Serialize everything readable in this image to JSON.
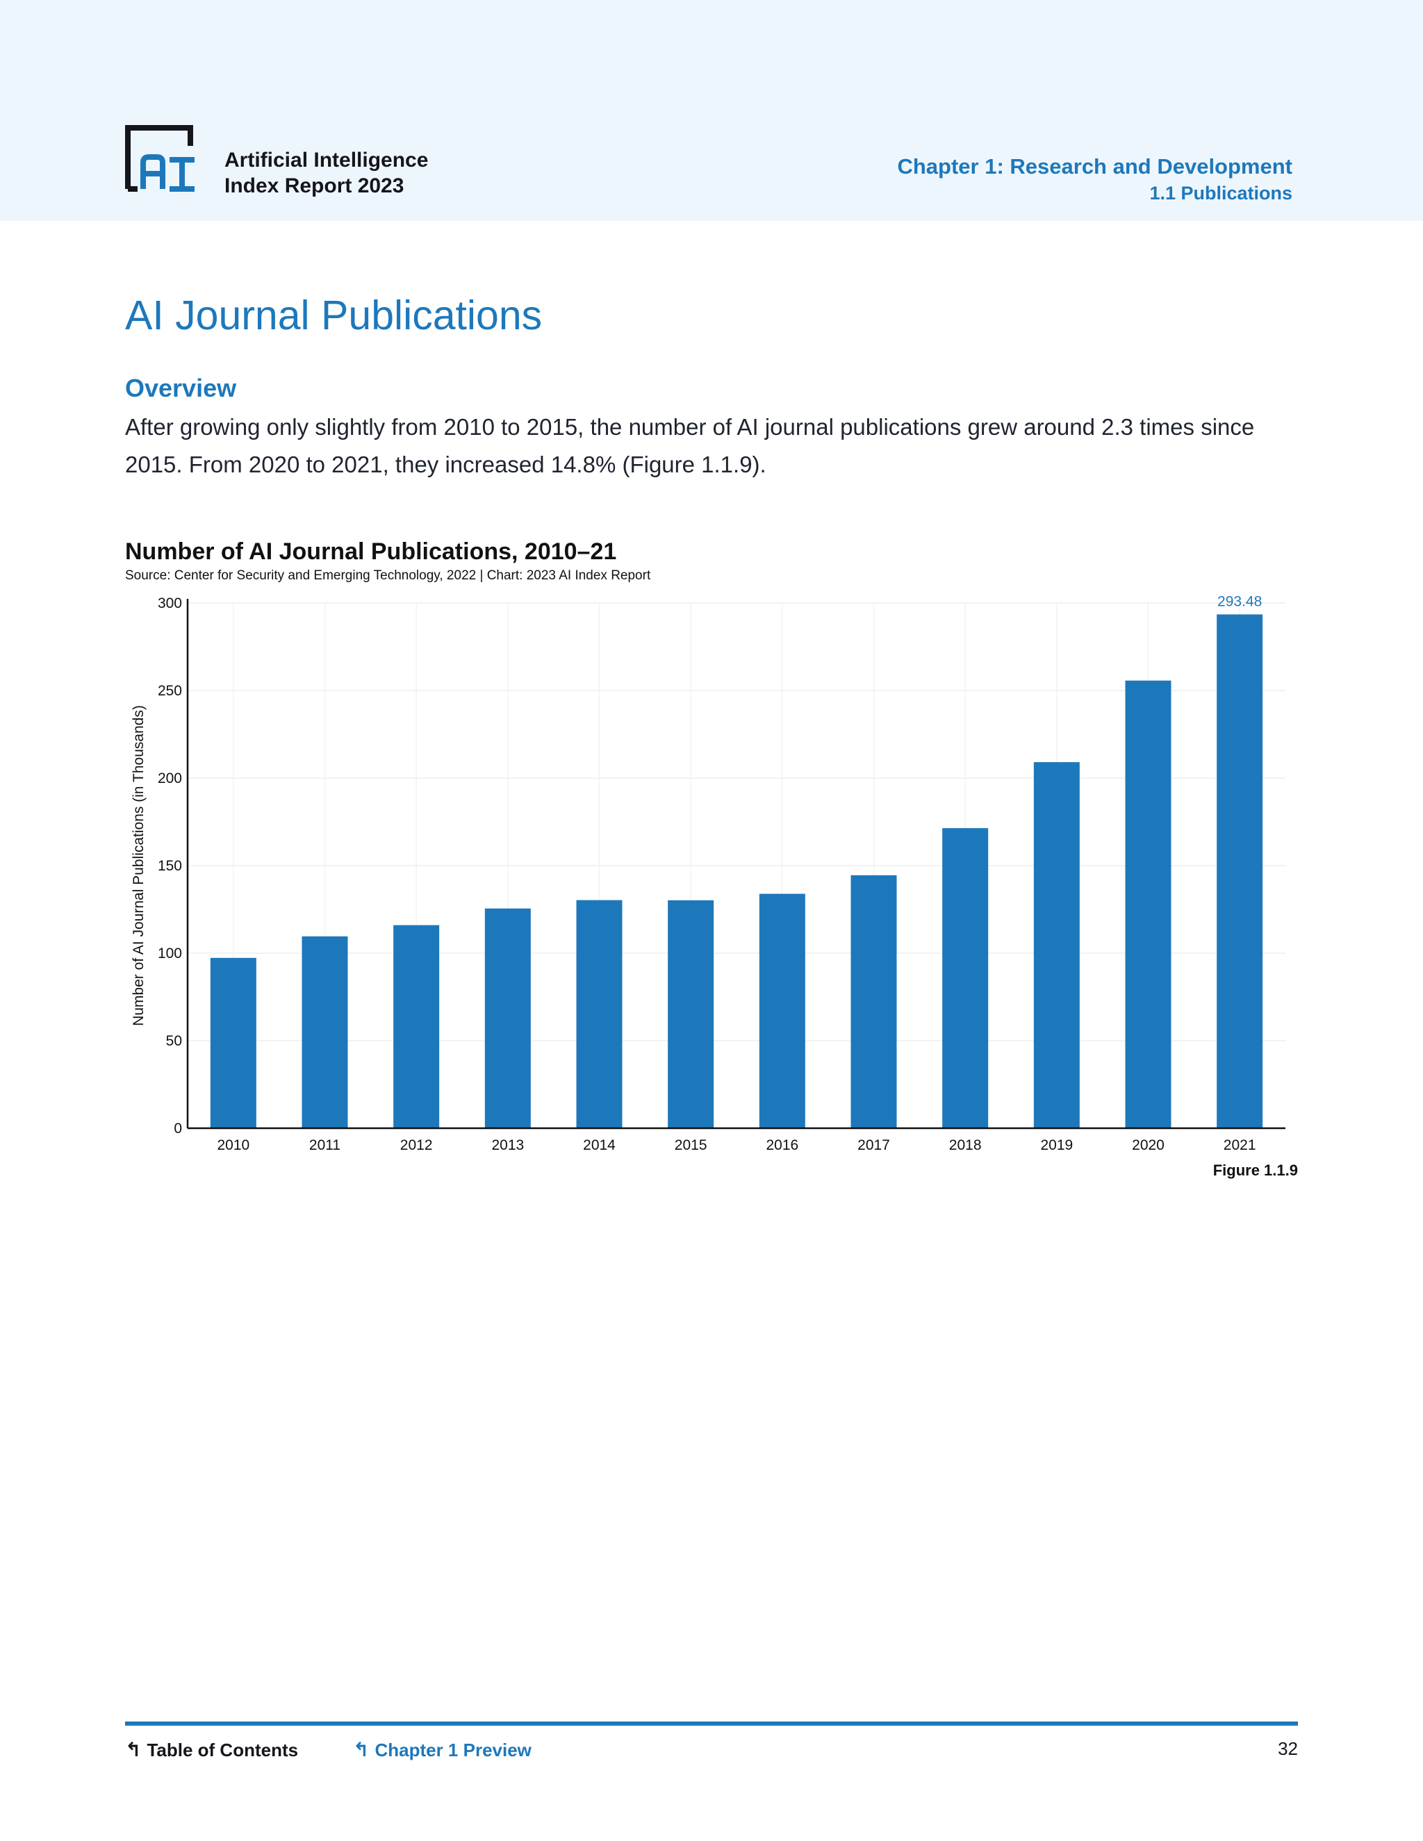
{
  "header": {
    "brand_line1": "Artificial Intelligence",
    "brand_line2": "Index Report 2023",
    "chapter": "Chapter 1: Research and Development",
    "section": "1.1 Publications"
  },
  "page": {
    "title": "AI Journal Publications",
    "overview_heading": "Overview",
    "overview_text": "After growing only slightly from 2010 to 2015, the number of AI journal publications grew around 2.3 times since 2015. From 2020 to 2021, they increased 14.8% (Figure 1.1.9).",
    "figure_label": "Figure 1.1.9"
  },
  "chart_data": {
    "type": "bar",
    "title": "Number of AI Journal Publications, 2010–21",
    "source": "Source: Center for Security and Emerging Technology, 2022 | Chart: 2023 AI Index Report",
    "ylabel": "Number of AI Journal Publications (in Thousands)",
    "xlabel": "",
    "categories": [
      "2010",
      "2011",
      "2012",
      "2013",
      "2014",
      "2015",
      "2016",
      "2017",
      "2018",
      "2019",
      "2020",
      "2021"
    ],
    "values": [
      97.3,
      109.6,
      116.0,
      125.5,
      130.3,
      130.2,
      133.9,
      144.5,
      171.4,
      209.1,
      255.7,
      293.48
    ],
    "data_labels": [
      {
        "index": 11,
        "text": "293.48"
      }
    ],
    "ylim": [
      0,
      300
    ],
    "yticks": [
      0,
      50,
      100,
      150,
      200,
      250,
      300
    ],
    "grid": true,
    "bar_color": "#1d78bb"
  },
  "footer": {
    "toc": "Table of Contents",
    "chapter_preview": "Chapter 1 Preview",
    "page_number": "32"
  }
}
